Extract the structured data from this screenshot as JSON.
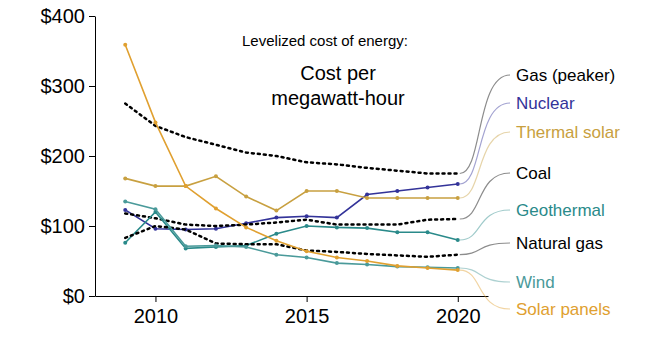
{
  "chart_data": {
    "type": "line",
    "title": "Levelized cost of energy:",
    "subtitle": "Cost per megawatt-hour",
    "x": [
      2009,
      2010,
      2011,
      2012,
      2013,
      2014,
      2015,
      2016,
      2017,
      2018,
      2019,
      2020
    ],
    "xlim": [
      2008,
      2021
    ],
    "xticks": [
      2010,
      2015,
      2020
    ],
    "ylim": [
      0,
      400
    ],
    "yticks": [
      {
        "value": 0,
        "label": "$0"
      },
      {
        "value": 100,
        "label": "$100"
      },
      {
        "value": 200,
        "label": "$200"
      },
      {
        "value": 300,
        "label": "$300"
      },
      {
        "value": 400,
        "label": "$400"
      }
    ],
    "grid": false,
    "legend": "right",
    "series": [
      {
        "name": "Gas (peaker)",
        "color": "#000000",
        "line_style": "dotted",
        "values": [
          275,
          243,
          227,
          216,
          205,
          200,
          191,
          188,
          183,
          179,
          175,
          175
        ]
      },
      {
        "name": "Nuclear",
        "color": "#333399",
        "line_style": "solid",
        "marker": "circle",
        "values": [
          123,
          96,
          95,
          96,
          104,
          112,
          114,
          112,
          145,
          150,
          155,
          160
        ]
      },
      {
        "name": "Thermal solar",
        "color": "#c8a040",
        "line_style": "solid",
        "marker": "circle",
        "values": [
          168,
          157,
          157,
          171,
          142,
          122,
          150,
          150,
          140,
          140,
          140,
          140
        ]
      },
      {
        "name": "Coal",
        "color": "#000000",
        "line_style": "dotted",
        "values": [
          118,
          111,
          102,
          100,
          102,
          105,
          109,
          102,
          102,
          102,
          109,
          110
        ]
      },
      {
        "name": "Geothermal",
        "color": "#2a8a8a",
        "line_style": "solid",
        "marker": "circle",
        "values": [
          76,
          120,
          68,
          70,
          72,
          89,
          100,
          98,
          97,
          91,
          91,
          80
        ]
      },
      {
        "name": "Natural gas",
        "color": "#000000",
        "line_style": "dotted",
        "values": [
          83,
          100,
          95,
          75,
          74,
          74,
          65,
          63,
          60,
          58,
          56,
          59
        ]
      },
      {
        "name": "Wind",
        "color": "#4a9a9a",
        "line_style": "solid",
        "marker": "circle",
        "values": [
          135,
          124,
          71,
          72,
          70,
          59,
          55,
          47,
          45,
          42,
          41,
          40
        ]
      },
      {
        "name": "Solar panels",
        "color": "#e0a030",
        "line_style": "solid",
        "marker": "circle",
        "values": [
          359,
          248,
          157,
          125,
          98,
          79,
          64,
          55,
          50,
          43,
          40,
          37
        ]
      }
    ]
  }
}
